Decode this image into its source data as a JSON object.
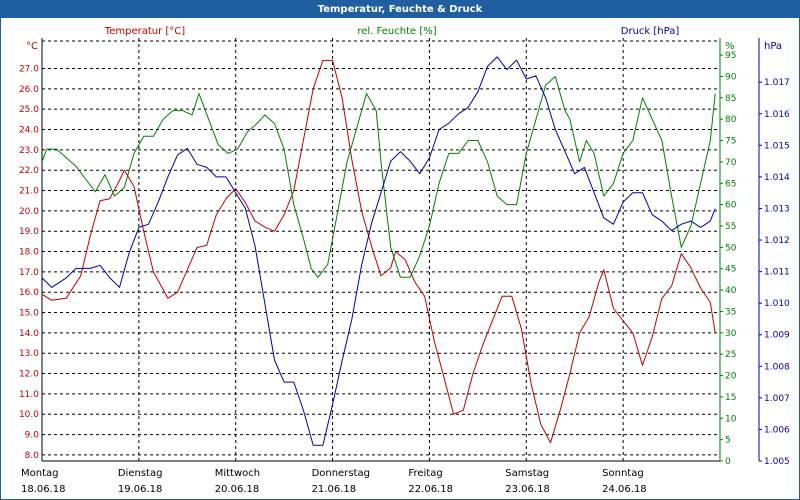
{
  "window": {
    "title": "Temperatur, Feuchte & Druck"
  },
  "colors": {
    "temperature": "#c00000",
    "humidity": "#008000",
    "pressure": "#0000b0",
    "grid": "#000000",
    "titlebar": "#1f5fa0"
  },
  "chart_data": {
    "type": "line",
    "title": "Temperatur, Feuchte & Druck",
    "x_days": [
      {
        "weekday": "Montag",
        "date": "18.06.18"
      },
      {
        "weekday": "Dienstag",
        "date": "19.06.18"
      },
      {
        "weekday": "Mittwoch",
        "date": "20.06.18"
      },
      {
        "weekday": "Donnerstag",
        "date": "21.06.18"
      },
      {
        "weekday": "Freitag",
        "date": "22.06.18"
      },
      {
        "weekday": "Samstag",
        "date": "23.06.18"
      },
      {
        "weekday": "Sonntag",
        "date": "24.06.18"
      }
    ],
    "x_range_days": [
      0,
      7
    ],
    "axes": {
      "temperature": {
        "label": "Temperatur [°C]",
        "unit": "°C",
        "min": 7.7,
        "max": 28.5,
        "ticks": [
          "8.0",
          "9.0",
          "10.0",
          "11.0",
          "12.0",
          "13.0",
          "14.0",
          "15.0",
          "16.0",
          "17.0",
          "18.0",
          "19.0",
          "20.0",
          "21.0",
          "22.0",
          "23.0",
          "24.0",
          "25.0",
          "26.0",
          "27.0"
        ]
      },
      "humidity": {
        "label": "rel. Feuchte [%]",
        "unit": "%",
        "min": 0,
        "max": 99,
        "ticks": [
          "0",
          "5",
          "10",
          "15",
          "20",
          "25",
          "30",
          "35",
          "40",
          "45",
          "50",
          "55",
          "60",
          "65",
          "70",
          "75",
          "80",
          "85",
          "90",
          "95"
        ]
      },
      "pressure": {
        "label": "Druck [hPa]",
        "unit": "hPa",
        "min": 1.005,
        "max": 1.0184,
        "ticks": [
          "1.005",
          "1.006",
          "1.007",
          "1.008",
          "1.009",
          "1.010",
          "1.011",
          "1.012",
          "1.013",
          "1.014",
          "1.015",
          "1.016",
          "1.017"
        ]
      }
    },
    "series": [
      {
        "name": "Temperatur",
        "axis": "temperature",
        "points": [
          [
            0.0,
            15.9
          ],
          [
            0.1,
            15.6
          ],
          [
            0.25,
            15.7
          ],
          [
            0.4,
            16.8
          ],
          [
            0.5,
            18.8
          ],
          [
            0.6,
            20.5
          ],
          [
            0.7,
            20.6
          ],
          [
            0.8,
            21.5
          ],
          [
            0.85,
            22.0
          ],
          [
            0.95,
            21.2
          ],
          [
            1.05,
            19.0
          ],
          [
            1.15,
            17.0
          ],
          [
            1.3,
            15.7
          ],
          [
            1.4,
            16.0
          ],
          [
            1.5,
            17.1
          ],
          [
            1.6,
            18.2
          ],
          [
            1.7,
            18.3
          ],
          [
            1.8,
            19.8
          ],
          [
            1.9,
            20.6
          ],
          [
            2.0,
            21.1
          ],
          [
            2.1,
            20.4
          ],
          [
            2.2,
            19.5
          ],
          [
            2.3,
            19.2
          ],
          [
            2.4,
            19.0
          ],
          [
            2.5,
            19.8
          ],
          [
            2.6,
            21.0
          ],
          [
            2.7,
            23.5
          ],
          [
            2.8,
            26.0
          ],
          [
            2.9,
            27.4
          ],
          [
            3.0,
            27.4
          ],
          [
            3.1,
            25.5
          ],
          [
            3.2,
            22.5
          ],
          [
            3.3,
            20.0
          ],
          [
            3.4,
            18.3
          ],
          [
            3.5,
            16.8
          ],
          [
            3.6,
            17.2
          ],
          [
            3.65,
            18.0
          ],
          [
            3.75,
            17.6
          ],
          [
            3.85,
            16.5
          ],
          [
            3.95,
            15.8
          ],
          [
            4.05,
            13.6
          ],
          [
            4.15,
            11.8
          ],
          [
            4.25,
            10.0
          ],
          [
            4.35,
            10.2
          ],
          [
            4.45,
            12.0
          ],
          [
            4.55,
            13.4
          ],
          [
            4.65,
            14.6
          ],
          [
            4.75,
            15.8
          ],
          [
            4.85,
            15.8
          ],
          [
            4.95,
            14.2
          ],
          [
            5.05,
            11.5
          ],
          [
            5.15,
            9.5
          ],
          [
            5.25,
            8.6
          ],
          [
            5.35,
            10.2
          ],
          [
            5.45,
            12.0
          ],
          [
            5.55,
            14.0
          ],
          [
            5.65,
            14.8
          ],
          [
            5.75,
            16.5
          ],
          [
            5.8,
            17.1
          ],
          [
            5.9,
            15.2
          ],
          [
            6.0,
            14.6
          ],
          [
            6.1,
            14.0
          ],
          [
            6.2,
            12.4
          ],
          [
            6.3,
            13.8
          ],
          [
            6.4,
            15.7
          ],
          [
            6.5,
            16.3
          ],
          [
            6.6,
            17.9
          ],
          [
            6.7,
            17.2
          ],
          [
            6.8,
            16.2
          ],
          [
            6.9,
            15.5
          ],
          [
            6.95,
            14.0
          ]
        ]
      },
      {
        "name": "rel. Feuchte",
        "axis": "humidity",
        "points": [
          [
            0.0,
            70
          ],
          [
            0.05,
            73
          ],
          [
            0.15,
            73
          ],
          [
            0.25,
            71
          ],
          [
            0.35,
            69
          ],
          [
            0.45,
            66
          ],
          [
            0.55,
            63
          ],
          [
            0.65,
            67
          ],
          [
            0.75,
            62
          ],
          [
            0.85,
            64
          ],
          [
            0.95,
            72
          ],
          [
            1.05,
            76
          ],
          [
            1.15,
            76
          ],
          [
            1.25,
            80
          ],
          [
            1.35,
            82
          ],
          [
            1.45,
            82
          ],
          [
            1.55,
            81
          ],
          [
            1.62,
            86
          ],
          [
            1.72,
            80
          ],
          [
            1.82,
            74
          ],
          [
            1.92,
            72
          ],
          [
            2.02,
            73
          ],
          [
            2.12,
            77
          ],
          [
            2.22,
            79
          ],
          [
            2.3,
            81
          ],
          [
            2.4,
            79
          ],
          [
            2.5,
            73
          ],
          [
            2.6,
            60
          ],
          [
            2.7,
            52
          ],
          [
            2.78,
            45
          ],
          [
            2.85,
            43
          ],
          [
            2.95,
            46
          ],
          [
            3.05,
            58
          ],
          [
            3.15,
            70
          ],
          [
            3.25,
            78
          ],
          [
            3.35,
            86
          ],
          [
            3.45,
            82
          ],
          [
            3.5,
            70
          ],
          [
            3.6,
            50
          ],
          [
            3.7,
            43
          ],
          [
            3.8,
            43
          ],
          [
            3.9,
            48
          ],
          [
            4.0,
            55
          ],
          [
            4.1,
            65
          ],
          [
            4.2,
            72
          ],
          [
            4.3,
            72
          ],
          [
            4.4,
            75
          ],
          [
            4.5,
            75
          ],
          [
            4.6,
            70
          ],
          [
            4.7,
            62
          ],
          [
            4.8,
            60
          ],
          [
            4.9,
            60
          ],
          [
            5.0,
            72
          ],
          [
            5.1,
            80
          ],
          [
            5.2,
            88
          ],
          [
            5.3,
            90
          ],
          [
            5.4,
            82
          ],
          [
            5.45,
            80
          ],
          [
            5.55,
            70
          ],
          [
            5.62,
            75
          ],
          [
            5.7,
            72
          ],
          [
            5.8,
            62
          ],
          [
            5.9,
            65
          ],
          [
            6.0,
            72
          ],
          [
            6.1,
            75
          ],
          [
            6.2,
            85
          ],
          [
            6.3,
            80
          ],
          [
            6.4,
            75
          ],
          [
            6.5,
            62
          ],
          [
            6.6,
            50
          ],
          [
            6.7,
            55
          ],
          [
            6.8,
            65
          ],
          [
            6.9,
            75
          ],
          [
            6.95,
            86
          ]
        ]
      },
      {
        "name": "Druck",
        "axis": "pressure",
        "points": [
          [
            0.0,
            1.0108
          ],
          [
            0.1,
            1.0105
          ],
          [
            0.25,
            1.0108
          ],
          [
            0.35,
            1.0111
          ],
          [
            0.5,
            1.0111
          ],
          [
            0.6,
            1.0112
          ],
          [
            0.7,
            1.0108
          ],
          [
            0.8,
            1.0105
          ],
          [
            0.9,
            1.0116
          ],
          [
            1.0,
            1.0124
          ],
          [
            1.1,
            1.0125
          ],
          [
            1.2,
            1.0132
          ],
          [
            1.3,
            1.014
          ],
          [
            1.4,
            1.0147
          ],
          [
            1.5,
            1.0149
          ],
          [
            1.6,
            1.0144
          ],
          [
            1.7,
            1.0143
          ],
          [
            1.8,
            1.014
          ],
          [
            1.9,
            1.014
          ],
          [
            2.0,
            1.0135
          ],
          [
            2.1,
            1.013
          ],
          [
            2.2,
            1.0118
          ],
          [
            2.3,
            1.01
          ],
          [
            2.4,
            1.0082
          ],
          [
            2.5,
            1.0075
          ],
          [
            2.6,
            1.0075
          ],
          [
            2.7,
            1.0066
          ],
          [
            2.8,
            1.0055
          ],
          [
            2.9,
            1.0055
          ],
          [
            3.0,
            1.0068
          ],
          [
            3.1,
            1.0082
          ],
          [
            3.2,
            1.0095
          ],
          [
            3.3,
            1.0112
          ],
          [
            3.4,
            1.0125
          ],
          [
            3.5,
            1.0135
          ],
          [
            3.6,
            1.0145
          ],
          [
            3.7,
            1.0148
          ],
          [
            3.8,
            1.0145
          ],
          [
            3.9,
            1.0141
          ],
          [
            4.0,
            1.0146
          ],
          [
            4.1,
            1.0155
          ],
          [
            4.2,
            1.0157
          ],
          [
            4.3,
            1.016
          ],
          [
            4.4,
            1.0162
          ],
          [
            4.5,
            1.0167
          ],
          [
            4.6,
            1.0175
          ],
          [
            4.7,
            1.0178
          ],
          [
            4.8,
            1.0174
          ],
          [
            4.9,
            1.0177
          ],
          [
            5.0,
            1.0171
          ],
          [
            5.1,
            1.0172
          ],
          [
            5.2,
            1.0165
          ],
          [
            5.3,
            1.0155
          ],
          [
            5.4,
            1.0148
          ],
          [
            5.5,
            1.0141
          ],
          [
            5.6,
            1.0143
          ],
          [
            5.7,
            1.0135
          ],
          [
            5.8,
            1.0127
          ],
          [
            5.9,
            1.0125
          ],
          [
            6.0,
            1.0132
          ],
          [
            6.1,
            1.0135
          ],
          [
            6.2,
            1.0135
          ],
          [
            6.3,
            1.0128
          ],
          [
            6.4,
            1.0126
          ],
          [
            6.5,
            1.0123
          ],
          [
            6.6,
            1.0125
          ],
          [
            6.7,
            1.0126
          ],
          [
            6.8,
            1.0124
          ],
          [
            6.9,
            1.0126
          ],
          [
            6.95,
            1.013
          ]
        ]
      }
    ]
  }
}
